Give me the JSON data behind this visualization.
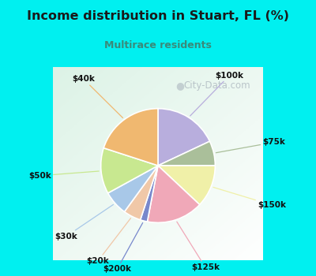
{
  "title": "Income distribution in Stuart, FL (%)",
  "subtitle": "Multirace residents",
  "title_color": "#1a1a1a",
  "subtitle_color": "#3a8a7a",
  "bg_cyan": "#00f0f0",
  "watermark": "City-Data.com",
  "slices": [
    {
      "label": "$100k",
      "value": 18,
      "color": "#b8aedd"
    },
    {
      "label": "$75k",
      "value": 7,
      "color": "#aabf9a"
    },
    {
      "label": "$150k",
      "value": 12,
      "color": "#f0f0a8"
    },
    {
      "label": "$125k",
      "value": 16,
      "color": "#f0a8b8"
    },
    {
      "label": "$200k",
      "value": 2,
      "color": "#7888cc"
    },
    {
      "label": "$20k",
      "value": 5,
      "color": "#f0c8a8"
    },
    {
      "label": "$30k",
      "value": 7,
      "color": "#a8c8e8"
    },
    {
      "label": "$50k",
      "value": 13,
      "color": "#c8e890"
    },
    {
      "label": "$40k",
      "value": 20,
      "color": "#f0b870"
    }
  ]
}
